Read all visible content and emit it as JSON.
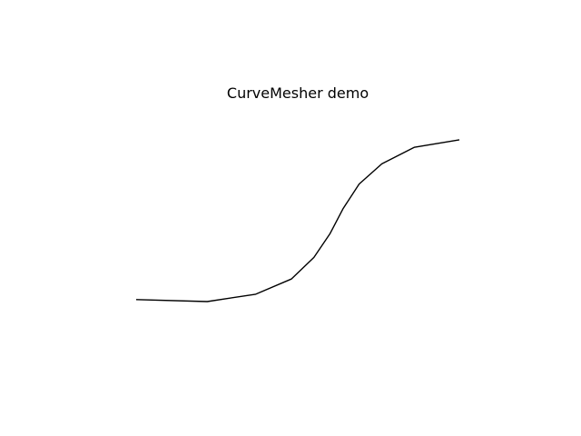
{
  "chart_data": {
    "type": "line",
    "title": "CurveMesher demo",
    "xlabel": "",
    "ylabel": "",
    "axes_visible": false,
    "grid": false,
    "line_color": "#000000",
    "background_color": "#ffffff",
    "series": [
      {
        "x": [
          0.0,
          0.22,
          0.37,
          0.48,
          0.55,
          0.6,
          0.64,
          0.69,
          0.76,
          0.86,
          1.0
        ],
        "y": [
          0.012,
          0.0,
          0.044,
          0.135,
          0.264,
          0.407,
          0.555,
          0.703,
          0.824,
          0.923,
          0.968
        ]
      }
    ]
  }
}
